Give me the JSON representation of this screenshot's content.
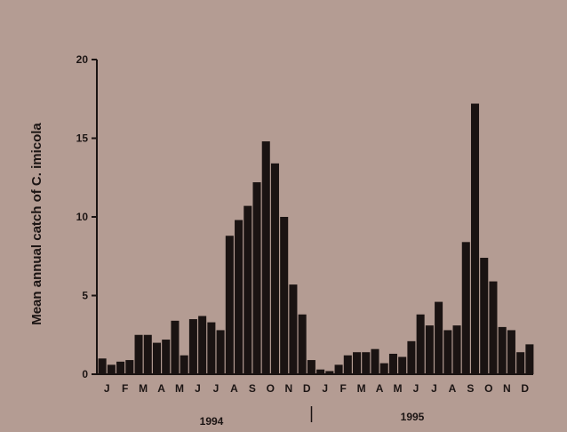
{
  "chart_data": {
    "type": "bar",
    "ylabel": "Mean annual catch of C. imicola",
    "ylim": [
      0,
      20
    ],
    "yticks": [
      0,
      5,
      10,
      15,
      20
    ],
    "month_labels": [
      "J",
      "F",
      "M",
      "A",
      "M",
      "J",
      "J",
      "A",
      "S",
      "O",
      "N",
      "D",
      "J",
      "F",
      "M",
      "A",
      "M",
      "J",
      "J",
      "A",
      "S",
      "O",
      "N",
      "D"
    ],
    "year_labels": [
      "1994",
      "1995"
    ],
    "values": [
      1.0,
      0.6,
      0.8,
      0.9,
      2.5,
      2.5,
      2.0,
      2.2,
      3.4,
      1.2,
      3.5,
      3.7,
      3.3,
      2.8,
      8.8,
      9.8,
      10.7,
      12.2,
      14.8,
      13.4,
      10.0,
      5.7,
      3.8,
      0.9,
      0.3,
      0.2,
      0.6,
      1.2,
      1.4,
      1.4,
      1.6,
      0.7,
      1.3,
      1.1,
      2.1,
      3.8,
      3.1,
      4.6,
      2.8,
      3.1,
      8.4,
      17.2,
      7.4,
      5.9,
      3.0,
      2.8,
      1.4,
      1.9
    ],
    "colors": {
      "bar": "#1a1312",
      "axis": "#1a1312",
      "background": "#b49c93"
    }
  }
}
